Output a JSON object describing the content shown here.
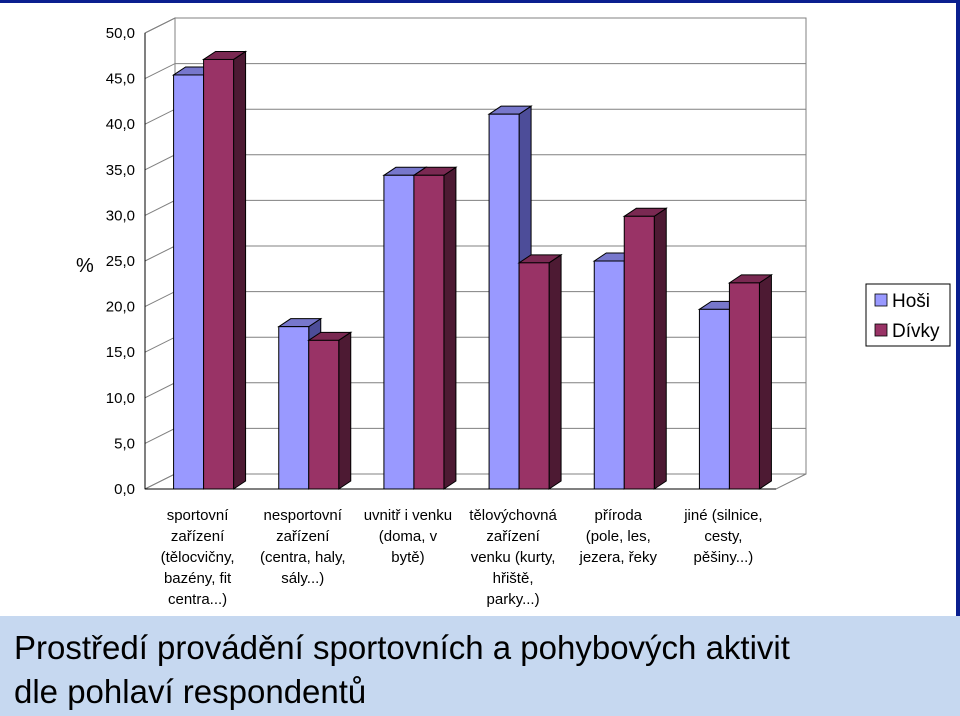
{
  "caption": {
    "line1": "Prostředí provádění sportovních a pohybových aktivit",
    "line2": "dle pohlaví respondentů"
  },
  "colors": {
    "hosi_front": "#9999ff",
    "hosi_side": "#4d4d99",
    "hosi_top": "#7777cc",
    "divky_front": "#993366",
    "divky_side": "#4d1a33",
    "divky_top": "#7a2952",
    "caption_bg": "#c6d8f0",
    "frame_edge": "#0a1f8f"
  },
  "chart_data": {
    "type": "bar",
    "style": "3d-clustered-column",
    "ylabel": "%",
    "ylim": [
      0,
      50
    ],
    "ytick_step": 5,
    "ytick_labels": [
      "0,0",
      "5,0",
      "10,0",
      "15,0",
      "20,0",
      "25,0",
      "30,0",
      "35,0",
      "40,0",
      "45,0",
      "50,0"
    ],
    "grid": true,
    "legend_position": "right",
    "categories": [
      [
        "sportovní",
        "zařízení",
        "(tělocvičny,",
        "bazény, fit",
        "centra...)"
      ],
      [
        "nesportovní",
        "zařízení",
        "(centra, haly,",
        "sály...)"
      ],
      [
        "uvnitř i venku",
        "(doma, v",
        "bytě)"
      ],
      [
        "tělovýchovná",
        "zařízení",
        "venku (kurty,",
        "hřiště,",
        "parky...)"
      ],
      [
        "příroda",
        "(pole, les,",
        "jezera, řeky"
      ],
      [
        "jiné (silnice,",
        "cesty,",
        "pěšiny...)"
      ]
    ],
    "series": [
      {
        "name": "Hoši",
        "values": [
          45.4,
          17.8,
          34.4,
          41.1,
          25.0,
          19.7
        ]
      },
      {
        "name": "Dívky",
        "values": [
          47.1,
          16.3,
          34.4,
          24.8,
          29.9,
          22.6
        ]
      }
    ]
  }
}
